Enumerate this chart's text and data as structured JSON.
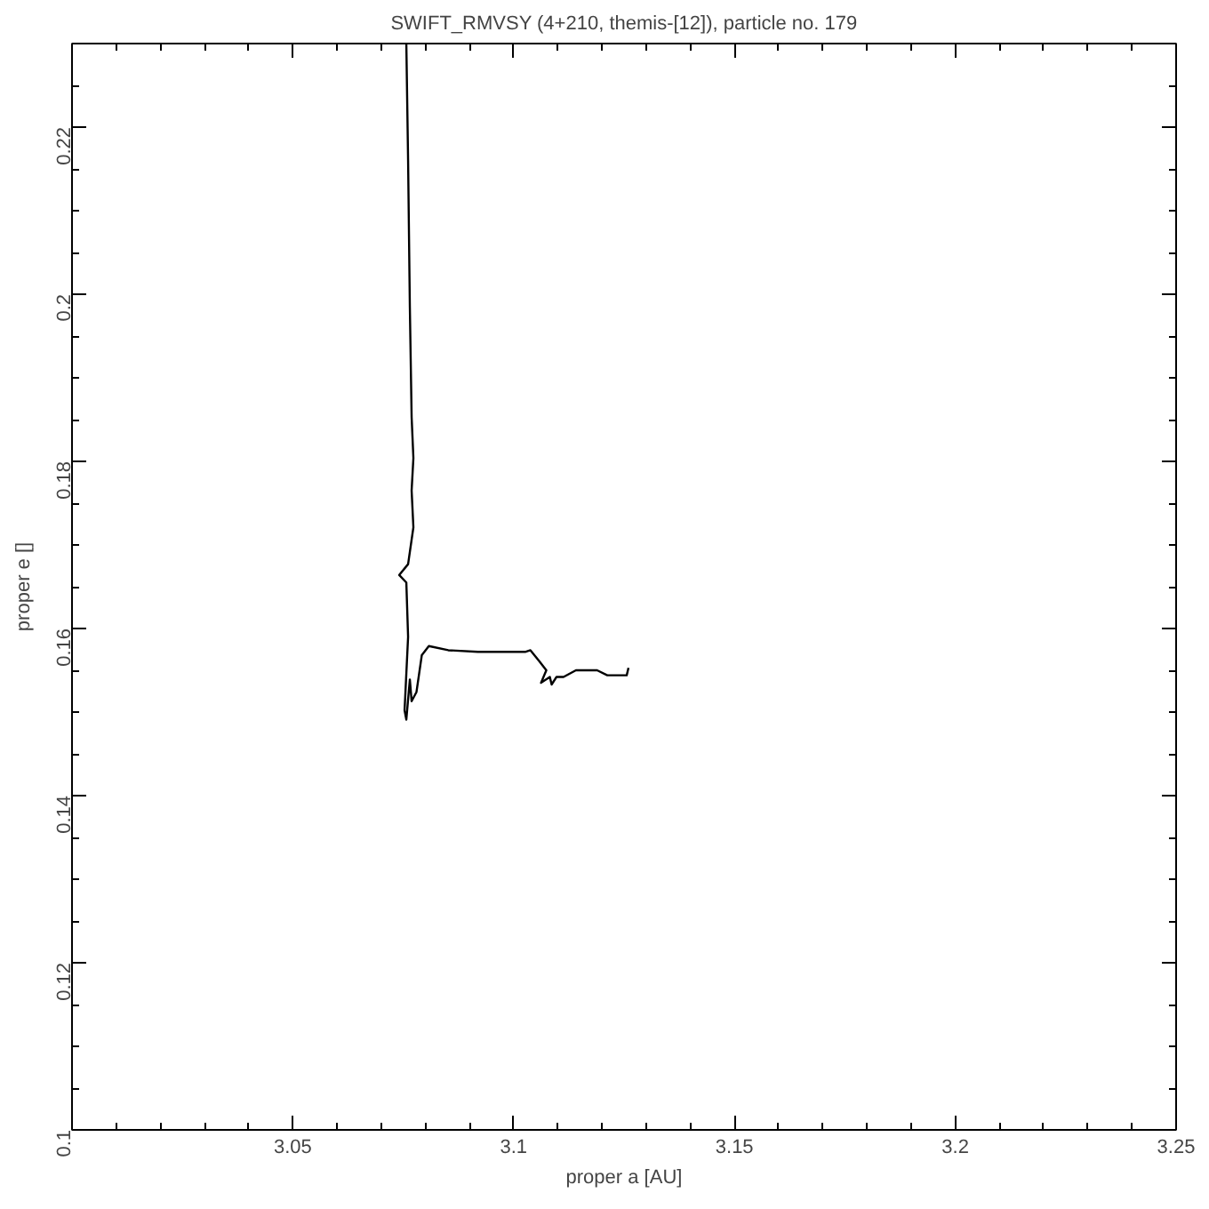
{
  "chart_data": {
    "type": "line",
    "title": "SWIFT_RMVSY (4+210, themis-[12]), particle no. 179",
    "xlabel": "proper a [AU]",
    "ylabel": "proper e []",
    "xlim": [
      3.0,
      3.25
    ],
    "xticks": [
      3.05,
      3.1,
      3.15,
      3.2,
      3.25
    ],
    "ylim": [
      0.1,
      0.23
    ],
    "yticks": [
      0.1,
      0.12,
      0.14,
      0.16,
      0.18,
      0.2,
      0.22
    ],
    "grid": false,
    "marker": "none",
    "line_style": "solid",
    "series": [
      {
        "color": "#000000",
        "x": [
          3.0757,
          3.0761,
          3.0765,
          3.0769,
          3.0773,
          3.0769,
          3.0773,
          3.0761,
          3.0741,
          3.0757,
          3.0761,
          3.0757,
          3.0753,
          3.0757,
          3.0765,
          3.0769,
          3.078,
          3.0792,
          3.0808,
          3.0852,
          3.0919,
          3.0991,
          3.1026,
          3.1038,
          3.1058,
          3.1074,
          3.1062,
          3.1082,
          3.1086,
          3.1097,
          3.1113,
          3.1141,
          3.1189,
          3.1212,
          3.122,
          3.1256,
          3.126
        ],
        "values": [
          0.23,
          0.216,
          0.1984,
          0.1853,
          0.1804,
          0.1765,
          0.1721,
          0.1677,
          0.1664,
          0.1655,
          0.159,
          0.1546,
          0.1502,
          0.1491,
          0.1539,
          0.1513,
          0.1524,
          0.1568,
          0.1579,
          0.1574,
          0.1572,
          0.1572,
          0.1572,
          0.1574,
          0.1561,
          0.155,
          0.1535,
          0.1542,
          0.1533,
          0.1542,
          0.1542,
          0.155,
          0.155,
          0.1544,
          0.1544,
          0.1544,
          0.1553
        ]
      }
    ]
  }
}
